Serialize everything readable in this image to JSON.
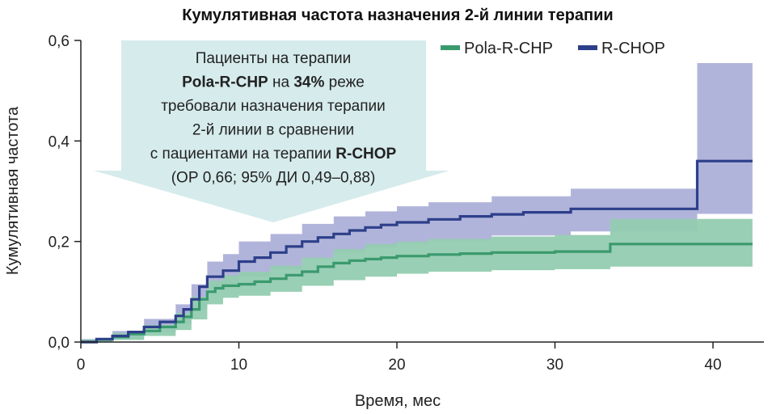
{
  "chart_data": {
    "type": "line",
    "title": "Кумулятивная частота назначения 2-й линии терапии",
    "xlabel": "Время, мес",
    "ylabel": "Кумулятивная частота",
    "xlim": [
      0,
      43
    ],
    "ylim": [
      0,
      0.6
    ],
    "x_ticks": [
      0,
      10,
      20,
      30,
      40
    ],
    "x_tick_labels": [
      "0",
      "10",
      "20",
      "30",
      "40"
    ],
    "y_ticks": [
      0,
      0.2,
      0.4,
      0.6
    ],
    "y_tick_labels": [
      "0,0",
      "0,2",
      "0,4",
      "0,6"
    ],
    "grid": false,
    "legend_position": "top-right",
    "series": [
      {
        "name": "Pola-R-CHP",
        "color": "#3a9a6e",
        "band_color": "#93ccb0",
        "step": true,
        "points": [
          [
            0,
            0
          ],
          [
            1,
            0.005
          ],
          [
            2,
            0.01
          ],
          [
            3,
            0.016
          ],
          [
            4,
            0.022
          ],
          [
            5,
            0.03
          ],
          [
            6,
            0.04
          ],
          [
            6.5,
            0.05
          ],
          [
            7,
            0.065
          ],
          [
            7.5,
            0.085
          ],
          [
            8,
            0.1
          ],
          [
            8.5,
            0.107
          ],
          [
            9,
            0.112
          ],
          [
            10,
            0.115
          ],
          [
            11,
            0.12
          ],
          [
            12,
            0.126
          ],
          [
            13,
            0.133
          ],
          [
            14,
            0.14
          ],
          [
            15,
            0.15
          ],
          [
            16,
            0.157
          ],
          [
            17,
            0.162
          ],
          [
            18,
            0.165
          ],
          [
            19,
            0.168
          ],
          [
            20,
            0.171
          ],
          [
            22,
            0.174
          ],
          [
            24,
            0.176
          ],
          [
            26,
            0.178
          ],
          [
            30,
            0.18
          ],
          [
            33.5,
            0.18
          ],
          [
            33.5,
            0.195
          ],
          [
            42.5,
            0.195
          ]
        ],
        "band_lower": [
          [
            0,
            0
          ],
          [
            2,
            0.004
          ],
          [
            4,
            0.012
          ],
          [
            6,
            0.024
          ],
          [
            7,
            0.045
          ],
          [
            8,
            0.075
          ],
          [
            9,
            0.088
          ],
          [
            10,
            0.092
          ],
          [
            12,
            0.1
          ],
          [
            14,
            0.112
          ],
          [
            16,
            0.123
          ],
          [
            18,
            0.13
          ],
          [
            20,
            0.136
          ],
          [
            22,
            0.14
          ],
          [
            26,
            0.143
          ],
          [
            30,
            0.145
          ],
          [
            33.5,
            0.145
          ],
          [
            33.5,
            0.15
          ],
          [
            42.5,
            0.15
          ]
        ],
        "band_upper": [
          [
            0,
            0.005
          ],
          [
            2,
            0.018
          ],
          [
            4,
            0.034
          ],
          [
            6,
            0.058
          ],
          [
            7,
            0.09
          ],
          [
            8,
            0.122
          ],
          [
            9,
            0.133
          ],
          [
            10,
            0.14
          ],
          [
            12,
            0.152
          ],
          [
            14,
            0.168
          ],
          [
            16,
            0.185
          ],
          [
            18,
            0.195
          ],
          [
            20,
            0.2
          ],
          [
            22,
            0.205
          ],
          [
            26,
            0.21
          ],
          [
            30,
            0.213
          ],
          [
            33.5,
            0.213
          ],
          [
            33.5,
            0.245
          ],
          [
            42.5,
            0.245
          ]
        ]
      },
      {
        "name": "R-CHOP",
        "color": "#2d3f8a",
        "band_color": "#a9acd6",
        "step": true,
        "points": [
          [
            0,
            0
          ],
          [
            1,
            0.006
          ],
          [
            2,
            0.012
          ],
          [
            3,
            0.02
          ],
          [
            4,
            0.03
          ],
          [
            5,
            0.04
          ],
          [
            6,
            0.052
          ],
          [
            6.5,
            0.065
          ],
          [
            7,
            0.085
          ],
          [
            7.5,
            0.11
          ],
          [
            8,
            0.13
          ],
          [
            9,
            0.142
          ],
          [
            10,
            0.16
          ],
          [
            11,
            0.168
          ],
          [
            12,
            0.178
          ],
          [
            13,
            0.19
          ],
          [
            14,
            0.2
          ],
          [
            15,
            0.208
          ],
          [
            16,
            0.215
          ],
          [
            17,
            0.222
          ],
          [
            18,
            0.228
          ],
          [
            19,
            0.233
          ],
          [
            20,
            0.238
          ],
          [
            22,
            0.244
          ],
          [
            24,
            0.25
          ],
          [
            26,
            0.254
          ],
          [
            28,
            0.258
          ],
          [
            31,
            0.265
          ],
          [
            35,
            0.265
          ],
          [
            39,
            0.265
          ],
          [
            39,
            0.36
          ],
          [
            42.5,
            0.36
          ]
        ],
        "band_lower": [
          [
            0,
            0
          ],
          [
            2,
            0.006
          ],
          [
            4,
            0.02
          ],
          [
            6,
            0.036
          ],
          [
            7,
            0.065
          ],
          [
            8,
            0.105
          ],
          [
            9,
            0.115
          ],
          [
            10,
            0.13
          ],
          [
            12,
            0.145
          ],
          [
            14,
            0.165
          ],
          [
            16,
            0.178
          ],
          [
            18,
            0.188
          ],
          [
            20,
            0.196
          ],
          [
            22,
            0.202
          ],
          [
            26,
            0.212
          ],
          [
            31,
            0.22
          ],
          [
            39,
            0.22
          ],
          [
            39,
            0.255
          ],
          [
            42.5,
            0.255
          ]
        ],
        "band_upper": [
          [
            0,
            0.006
          ],
          [
            2,
            0.022
          ],
          [
            4,
            0.046
          ],
          [
            6,
            0.075
          ],
          [
            7,
            0.115
          ],
          [
            8,
            0.16
          ],
          [
            9,
            0.175
          ],
          [
            10,
            0.2
          ],
          [
            12,
            0.215
          ],
          [
            14,
            0.235
          ],
          [
            16,
            0.25
          ],
          [
            18,
            0.26
          ],
          [
            20,
            0.27
          ],
          [
            22,
            0.278
          ],
          [
            26,
            0.29
          ],
          [
            31,
            0.305
          ],
          [
            39,
            0.31
          ],
          [
            39,
            0.555
          ],
          [
            42.5,
            0.555
          ]
        ]
      }
    ],
    "annotation": {
      "lines": [
        [
          {
            "text": "Пациенты на терапии",
            "bold": false
          }
        ],
        [
          {
            "text": "Pola-R-CHP",
            "bold": true
          },
          {
            "text": " на ",
            "bold": false
          },
          {
            "text": "34%",
            "bold": true
          },
          {
            "text": " реже",
            "bold": false
          }
        ],
        [
          {
            "text": "требовали назначения терапии",
            "bold": false
          }
        ],
        [
          {
            "text": "2-й линии в сравнении",
            "bold": false
          }
        ],
        [
          {
            "text": "с пациентами на терапии ",
            "bold": false
          },
          {
            "text": "R-CHOP",
            "bold": true
          }
        ],
        [
          {
            "text": "(ОР 0,66; 95% ДИ 0,49–0,88)",
            "bold": false
          }
        ]
      ],
      "fill_color": "#d6ebec"
    }
  }
}
